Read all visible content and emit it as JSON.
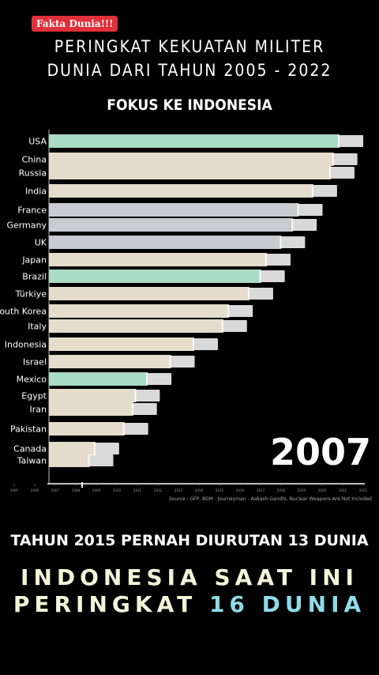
{
  "badge": "Fakta Dunia!!!",
  "title_line1": "PERINGKAT KEKUATAN MILITER",
  "title_line2": "DUNIA DARI TAHUN 2005 - 2022",
  "subtitle": "FOKUS KE INDONESIA",
  "year": "2007",
  "source": "Source : GFP, BGM : Journeyman - Aakash Gandhi, Nuclear Weapons Are Not Included",
  "note": "TAHUN 2015 PERNAH DIURUTAN 13 DUNIA",
  "line1": "INDONESIA SAAT INI",
  "line2_prefix": "PERINGKAT ",
  "line2_highlight": "16 DUNIA",
  "colors": {
    "green": "#a9dcc4",
    "beige": "#e5dccb",
    "gray": "#c9cbd0",
    "axis": "#ffffff",
    "highlight": "#8fdbe8"
  },
  "chart_data": {
    "type": "bar",
    "categories": [
      "USA",
      "China",
      "Russia",
      "India",
      "France",
      "Germany",
      "UK",
      "Japan",
      "Brazil",
      "Türkiye",
      "South Korea",
      "Italy",
      "Indonesia",
      "Israel",
      "Mexico",
      "Egypt",
      "Iran",
      "Pakistan",
      "Canada",
      "Taiwan"
    ],
    "values": [
      100,
      98,
      97,
      91,
      86,
      84,
      80,
      75,
      73,
      69,
      62,
      60,
      50,
      42,
      34,
      30,
      29,
      26,
      16,
      14
    ],
    "bar_colors": [
      "green",
      "beige",
      "beige",
      "beige",
      "gray",
      "gray",
      "gray",
      "beige",
      "green",
      "beige",
      "beige",
      "beige",
      "beige",
      "beige",
      "green",
      "beige",
      "beige",
      "beige",
      "beige",
      "beige"
    ],
    "flag_icons": [
      "usa-flag-icon",
      "china-flag-icon",
      "russia-flag-icon",
      "india-flag-icon",
      "france-flag-icon",
      "germany-flag-icon",
      "uk-flag-icon",
      "japan-flag-icon",
      "brazil-flag-icon",
      "turkiye-flag-icon",
      "south-korea-flag-icon",
      "italy-flag-icon",
      "indonesia-flag-icon",
      "israel-flag-icon",
      "mexico-flag-icon",
      "egypt-flag-icon",
      "iran-flag-icon",
      "pakistan-flag-icon",
      "canada-flag-icon",
      "taiwan-flag-icon"
    ],
    "x_ticks": [
      "2005",
      "2006",
      "2007",
      "2008",
      "2009",
      "2010",
      "2011",
      "2012",
      "2013",
      "2014",
      "2015",
      "2016",
      "2017",
      "2018",
      "2019",
      "2020",
      "2021",
      "2022"
    ],
    "grid": true,
    "legend": "none"
  }
}
